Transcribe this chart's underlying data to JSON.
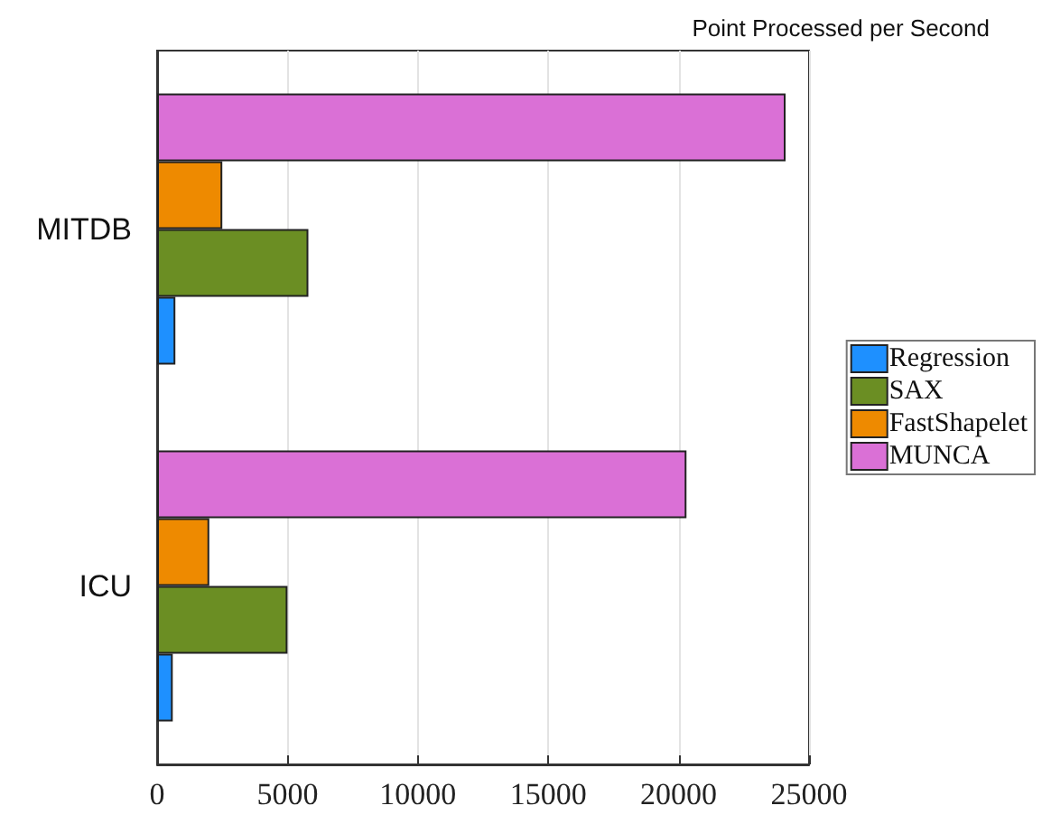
{
  "chart_data": {
    "type": "bar",
    "orientation": "horizontal",
    "title": "Point Processed per Second",
    "categories": [
      "MITDB",
      "ICU"
    ],
    "series": [
      {
        "name": "Regression",
        "color": "#1e90ff",
        "values": [
          700,
          600
        ]
      },
      {
        "name": "SAX",
        "color": "#6b8e23",
        "values": [
          5800,
          5000
        ]
      },
      {
        "name": "FastShapelet",
        "color": "#ee8a00",
        "values": [
          2500,
          2000
        ]
      },
      {
        "name": "MUNCA",
        "color": "#da70d6",
        "values": [
          24100,
          20300
        ]
      }
    ],
    "xlim": [
      0,
      25000
    ],
    "xticks": [
      0,
      5000,
      10000,
      15000,
      20000,
      25000
    ],
    "grid": "x",
    "legend": "right"
  }
}
